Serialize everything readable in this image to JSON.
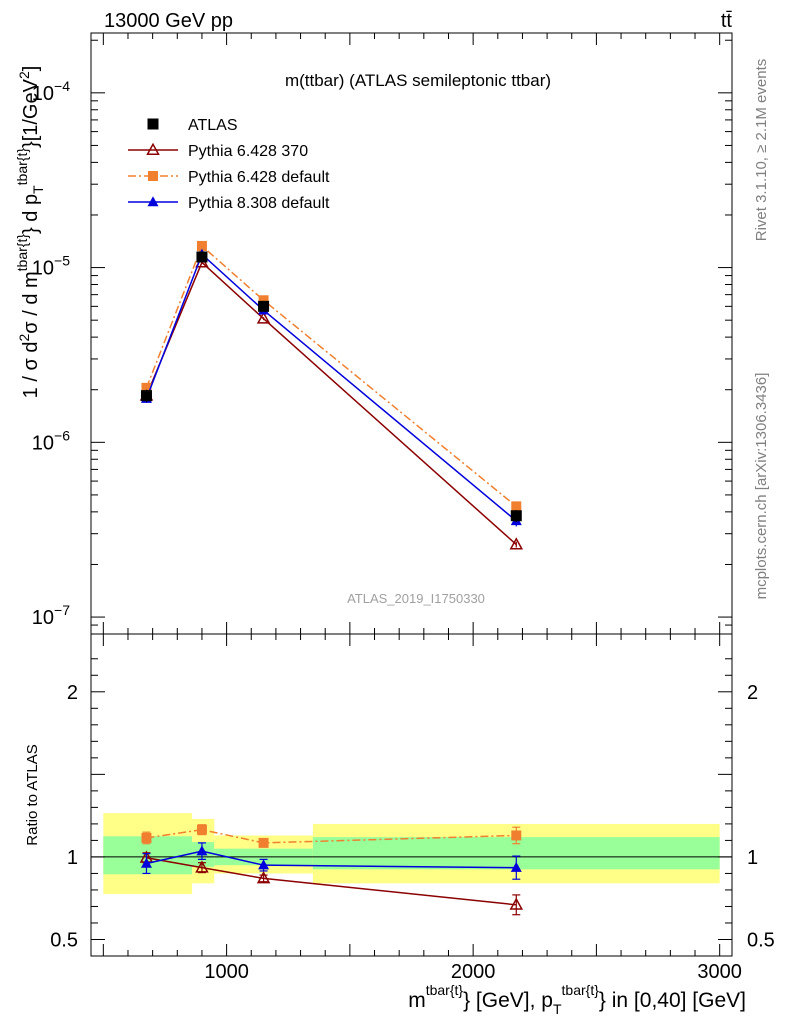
{
  "header": {
    "left": "13000 GeV pp",
    "right": "tt̄"
  },
  "side_labels": {
    "rivet": "Rivet 3.1.10, ≥ 2.1M events",
    "mcplots": "mcplots.cern.ch [arXiv:1306.3436]"
  },
  "chart_data": {
    "type": "line",
    "title": "m(ttbar) (ATLAS semileptonic ttbar)",
    "watermark": "ATLAS_2019_I1750330",
    "x": [
      675,
      900,
      1150,
      2175
    ],
    "xlim": [
      450,
      3050
    ],
    "x_ticks": [
      {
        "v": 1000,
        "label": "1000"
      },
      {
        "v": 2000,
        "label": "2000"
      },
      {
        "v": 3000,
        "label": "3000"
      }
    ],
    "xlabel_parts": {
      "base1": "m",
      "sup1": "tbar{t}",
      "mid": "} [GeV], p",
      "sub2": "T",
      "sup2": "tbar{t}",
      "end": "} in [0,40] [GeV]"
    },
    "ylabel": "1 / σ d²σ / d m^{tbar{t}} d p_T^{tbar{t}} [1/GeV²]",
    "ylabel_parts": {
      "a": "1 / σ d",
      "a_sup": "2",
      "b": "σ / d m",
      "b_sup": "tbar{t}",
      "c": "} d p",
      "c_sub": "T",
      "c_sup": "tbar{t}",
      "d": "}[1/GeV",
      "d_sup": "2",
      "e": "]"
    },
    "ylim": [
      8e-08,
      0.00022
    ],
    "y_scale": "log",
    "y_ticks": [
      {
        "v": 1e-07,
        "base": "10",
        "exp": "−7"
      },
      {
        "v": 1e-06,
        "base": "10",
        "exp": "−6"
      },
      {
        "v": 1e-05,
        "base": "10",
        "exp": "−5"
      },
      {
        "v": 0.0001,
        "base": "10",
        "exp": "−4"
      }
    ],
    "legend_position": "top-left",
    "series": [
      {
        "name": "ATLAS",
        "color": "#000000",
        "marker": "square",
        "line": "none",
        "values": [
          1.85e-06,
          1.15e-05,
          6e-06,
          3.8e-07
        ],
        "errors": [
          1.5e-07,
          6e-07,
          3e-07,
          3e-08
        ]
      },
      {
        "name": "Pythia 6.428 370",
        "color": "#8b0000",
        "marker": "open-triangle",
        "line": "solid",
        "values": [
          1.85e-06,
          1.07e-05,
          5.1e-06,
          2.6e-07
        ],
        "errors": [
          6e-08,
          2e-07,
          1e-07,
          1e-08
        ]
      },
      {
        "name": "Pythia 6.428 default",
        "color": "#f08030",
        "marker": "filled-square",
        "line": "dashdot",
        "values": [
          2.05e-06,
          1.33e-05,
          6.5e-06,
          4.3e-07
        ],
        "errors": [
          6e-08,
          2e-07,
          1e-07,
          1e-08
        ]
      },
      {
        "name": "Pythia 8.308 default",
        "color": "#0000dd",
        "marker": "filled-triangle",
        "line": "solid",
        "values": [
          1.78e-06,
          1.19e-05,
          5.7e-06,
          3.55e-07
        ],
        "errors": [
          1e-07,
          4e-07,
          2e-07,
          2.5e-08
        ]
      }
    ],
    "ratio": {
      "ylabel": "Ratio to ATLAS",
      "ylim": [
        0.4,
        2.35
      ],
      "y_ticks": [
        {
          "v": 0.5,
          "label": "0.5"
        },
        {
          "v": 1,
          "label": "1"
        },
        {
          "v": 2,
          "label": "2"
        }
      ],
      "bands": [
        {
          "x0": 500,
          "x1": 860,
          "yellow": [
            0.775,
            1.265
          ],
          "green": [
            0.895,
            1.125
          ]
        },
        {
          "x0": 860,
          "x1": 950,
          "yellow": [
            0.84,
            1.23
          ],
          "green": [
            0.94,
            1.09
          ]
        },
        {
          "x0": 950,
          "x1": 1350,
          "yellow": [
            0.9,
            1.13
          ],
          "green": [
            0.95,
            1.05
          ]
        },
        {
          "x0": 1350,
          "x1": 3000,
          "yellow": [
            0.84,
            1.2
          ],
          "green": [
            0.925,
            1.12
          ]
        }
      ],
      "series": [
        {
          "name": "Pythia 6.428 370",
          "values": [
            0.995,
            0.935,
            0.87,
            0.71
          ],
          "errors": [
            0.03,
            0.03,
            0.02,
            0.06
          ]
        },
        {
          "name": "Pythia 6.428 default",
          "values": [
            1.115,
            1.165,
            1.085,
            1.13
          ],
          "errors": [
            0.035,
            0.03,
            0.02,
            0.05
          ]
        },
        {
          "name": "Pythia 8.308 default",
          "values": [
            0.96,
            1.035,
            0.95,
            0.935
          ],
          "errors": [
            0.06,
            0.05,
            0.035,
            0.07
          ]
        }
      ]
    }
  }
}
